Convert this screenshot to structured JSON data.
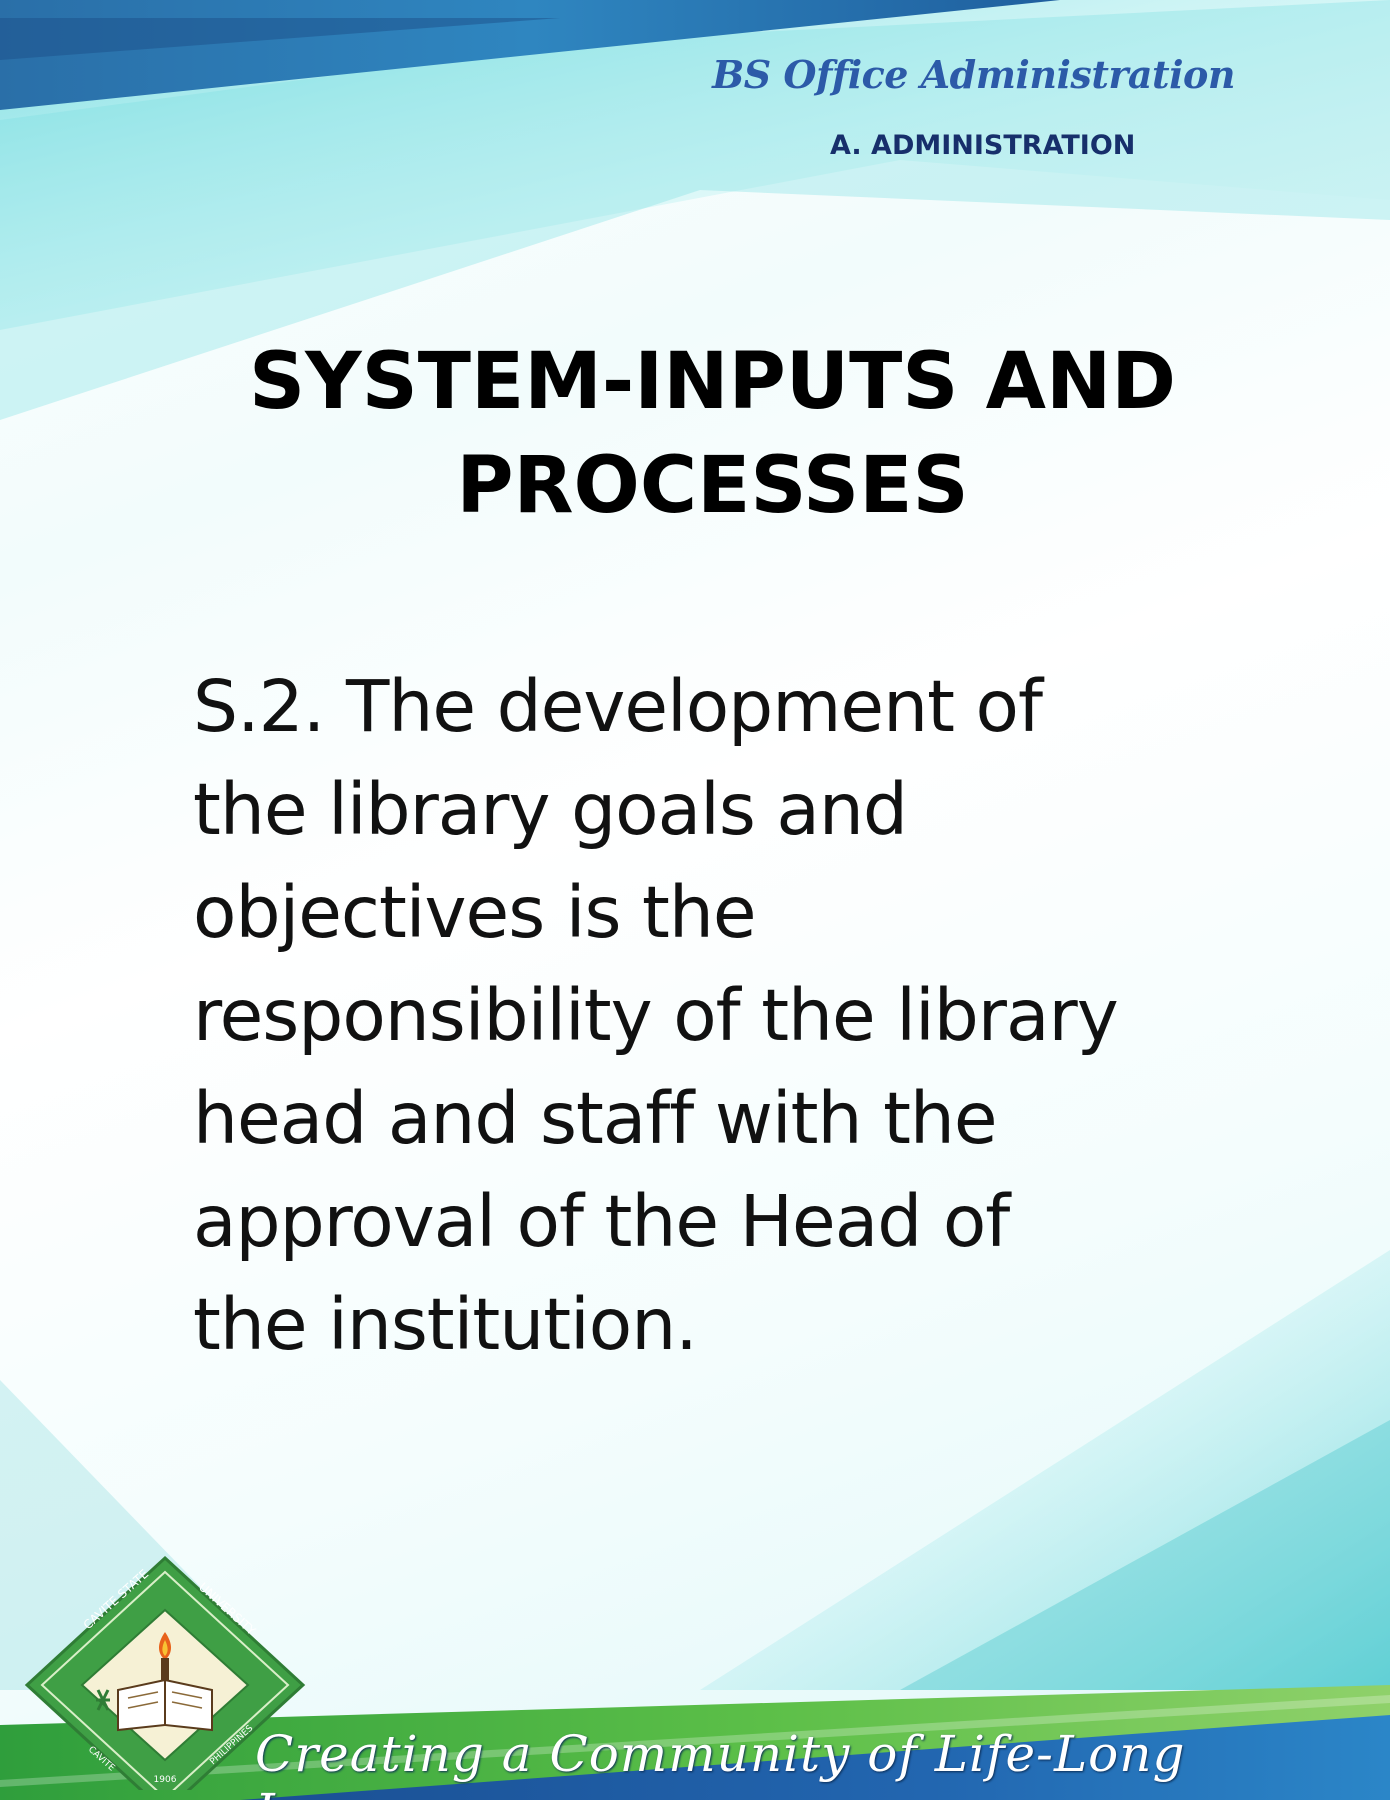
{
  "header": {
    "program": "BS Office Administration",
    "section": "A. ADMINISTRATION"
  },
  "slide": {
    "title_line1": "SYSTEM-INPUTS AND",
    "title_line2": "PROCESSES",
    "lines": [
      "S.2. The development of",
      "the library goals and",
      "objectives is the",
      "responsibility of the library",
      "head and staff with the",
      "approval of the Head of",
      "the institution."
    ]
  },
  "footer": {
    "tagline": "Creating a Community of Life-Long Learners",
    "logo": {
      "text_top_left": "CAVITE STATE",
      "text_top_right": "UNIVERSITY",
      "text_bottom_left": "CAVITE",
      "text_bottom_right": "PHILIPPINES",
      "year": "1906"
    }
  },
  "colors": {
    "header_program": "#2c5aa8",
    "header_section": "#172f6b",
    "top_band": "#1f6fb3",
    "footer_green": "#3aa845",
    "footer_blue": "#1d5fa8"
  }
}
